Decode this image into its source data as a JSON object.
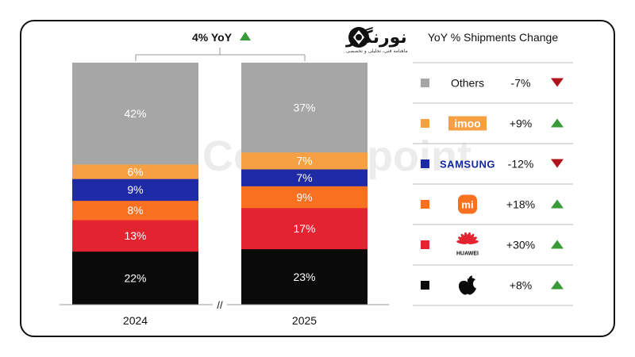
{
  "logo": {
    "name": "نورنگار",
    "tagline": "ماهنامه فنی، تحلیلی و تخصصی"
  },
  "watermark": "Counterpoint",
  "header": {
    "yoy_label": "4% YoY",
    "yoy_direction": "up"
  },
  "legend": {
    "title": "YoY % Shipments Change",
    "items": [
      {
        "brand": "Others",
        "display": "text",
        "color": "#a6a6a6",
        "change": "-7%",
        "direction": "down"
      },
      {
        "brand": "imoo",
        "display": "imoo-logo",
        "color": "#f6a043",
        "change": "+9%",
        "direction": "up"
      },
      {
        "brand": "SAMSUNG",
        "display": "samsung-logo",
        "color": "#1f2aa6",
        "change": "-12%",
        "direction": "down"
      },
      {
        "brand": "mi",
        "display": "xiaomi-logo",
        "color": "#f97021",
        "change": "+18%",
        "direction": "up"
      },
      {
        "brand": "HUAWEI",
        "display": "huawei-logo",
        "color": "#e42330",
        "change": "+30%",
        "direction": "up"
      },
      {
        "brand": "Apple",
        "display": "apple-logo",
        "color": "#0a0a0a",
        "change": "+8%",
        "direction": "up"
      }
    ]
  },
  "colors": {
    "up": "#3a9a3a",
    "down": "#b0141c"
  },
  "chart_data": {
    "type": "bar",
    "stacked": true,
    "categories": [
      "2024",
      "2025"
    ],
    "series": [
      {
        "name": "Apple",
        "values": [
          22,
          23
        ],
        "labels": [
          "22%",
          "23%"
        ]
      },
      {
        "name": "Huawei",
        "values": [
          13,
          17
        ],
        "labels": [
          "13%",
          "17%"
        ]
      },
      {
        "name": "Xiaomi",
        "values": [
          8,
          9
        ],
        "labels": [
          "8%",
          "9%"
        ]
      },
      {
        "name": "Samsung",
        "values": [
          9,
          7
        ],
        "labels": [
          "9%",
          "7%"
        ]
      },
      {
        "name": "imoo",
        "values": [
          6,
          7
        ],
        "labels": [
          "6%",
          "7%"
        ]
      },
      {
        "name": "Others",
        "values": [
          42,
          37
        ],
        "labels": [
          "42%",
          "37%"
        ]
      }
    ],
    "ylim": [
      0,
      100
    ],
    "axis_break": "//",
    "legend_placement": "right"
  }
}
